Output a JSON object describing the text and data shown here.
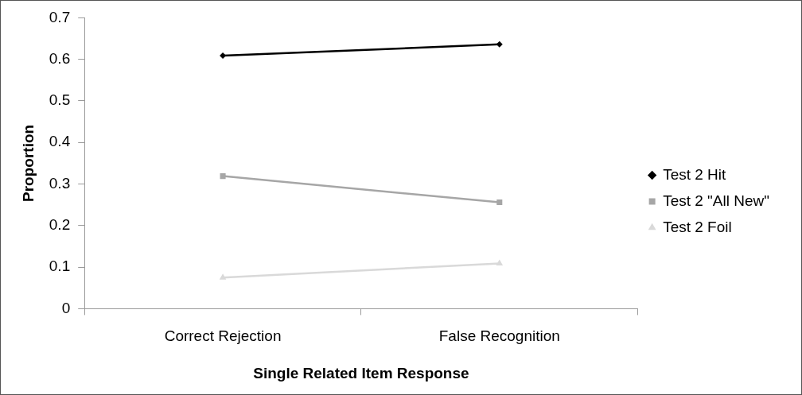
{
  "chart_data": {
    "type": "line",
    "xlabel": "Single Related Item Response",
    "ylabel": "Proportion",
    "categories": [
      "Correct Rejection",
      "False Recognition"
    ],
    "series": [
      {
        "name": "Test 2 Hit",
        "color": "#000000",
        "marker": "diamond",
        "values": [
          0.609,
          0.636
        ]
      },
      {
        "name": "Test 2 \"All New\"",
        "color": "#a6a6a6",
        "marker": "square",
        "values": [
          0.319,
          0.256
        ]
      },
      {
        "name": "Test 2 Foil",
        "color": "#d9d9d9",
        "marker": "triangle",
        "values": [
          0.075,
          0.109
        ]
      }
    ],
    "ylim": [
      0,
      0.7
    ],
    "yticks": [
      0,
      0.1,
      0.2,
      0.3,
      0.4,
      0.5,
      0.6,
      0.7
    ],
    "grid": false,
    "legend": "right"
  }
}
